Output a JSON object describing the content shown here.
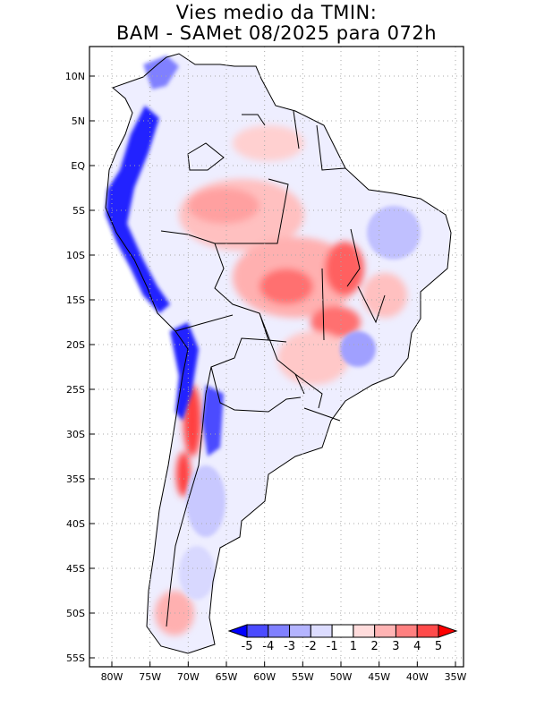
{
  "title": {
    "line1": "Vies medio da TMIN:",
    "line2": "BAM - SAMet 08/2025  para 072h"
  },
  "latitude_labels": [
    "10N",
    "5N",
    "EQ",
    "5S",
    "10S",
    "15S",
    "20S",
    "25S",
    "30S",
    "35S",
    "40S",
    "45S",
    "50S",
    "55S"
  ],
  "latitude_values": [
    10,
    5,
    0,
    -5,
    -10,
    -15,
    -20,
    -25,
    -30,
    -35,
    -40,
    -45,
    -50,
    -55
  ],
  "longitude_labels": [
    "80W",
    "75W",
    "70W",
    "65W",
    "60W",
    "55W",
    "50W",
    "45W",
    "40W",
    "35W"
  ],
  "longitude_values": [
    -80,
    -75,
    -70,
    -65,
    -60,
    -55,
    -50,
    -45,
    -40,
    -35
  ],
  "colorbar": {
    "labels": [
      "-5",
      "-4",
      "-3",
      "-2",
      "-1",
      "1",
      "2",
      "3",
      "4",
      "5"
    ],
    "colors": [
      "#0000ff",
      "#4b4bff",
      "#8080ff",
      "#b4b4ff",
      "#dcdcff",
      "#ffffff",
      "#ffdcdc",
      "#ffb4b4",
      "#ff8080",
      "#ff4b4b",
      "#ff0000"
    ]
  },
  "colors": {
    "land_neutral": "#f2f2ff",
    "grid": "#b0b0b0"
  }
}
